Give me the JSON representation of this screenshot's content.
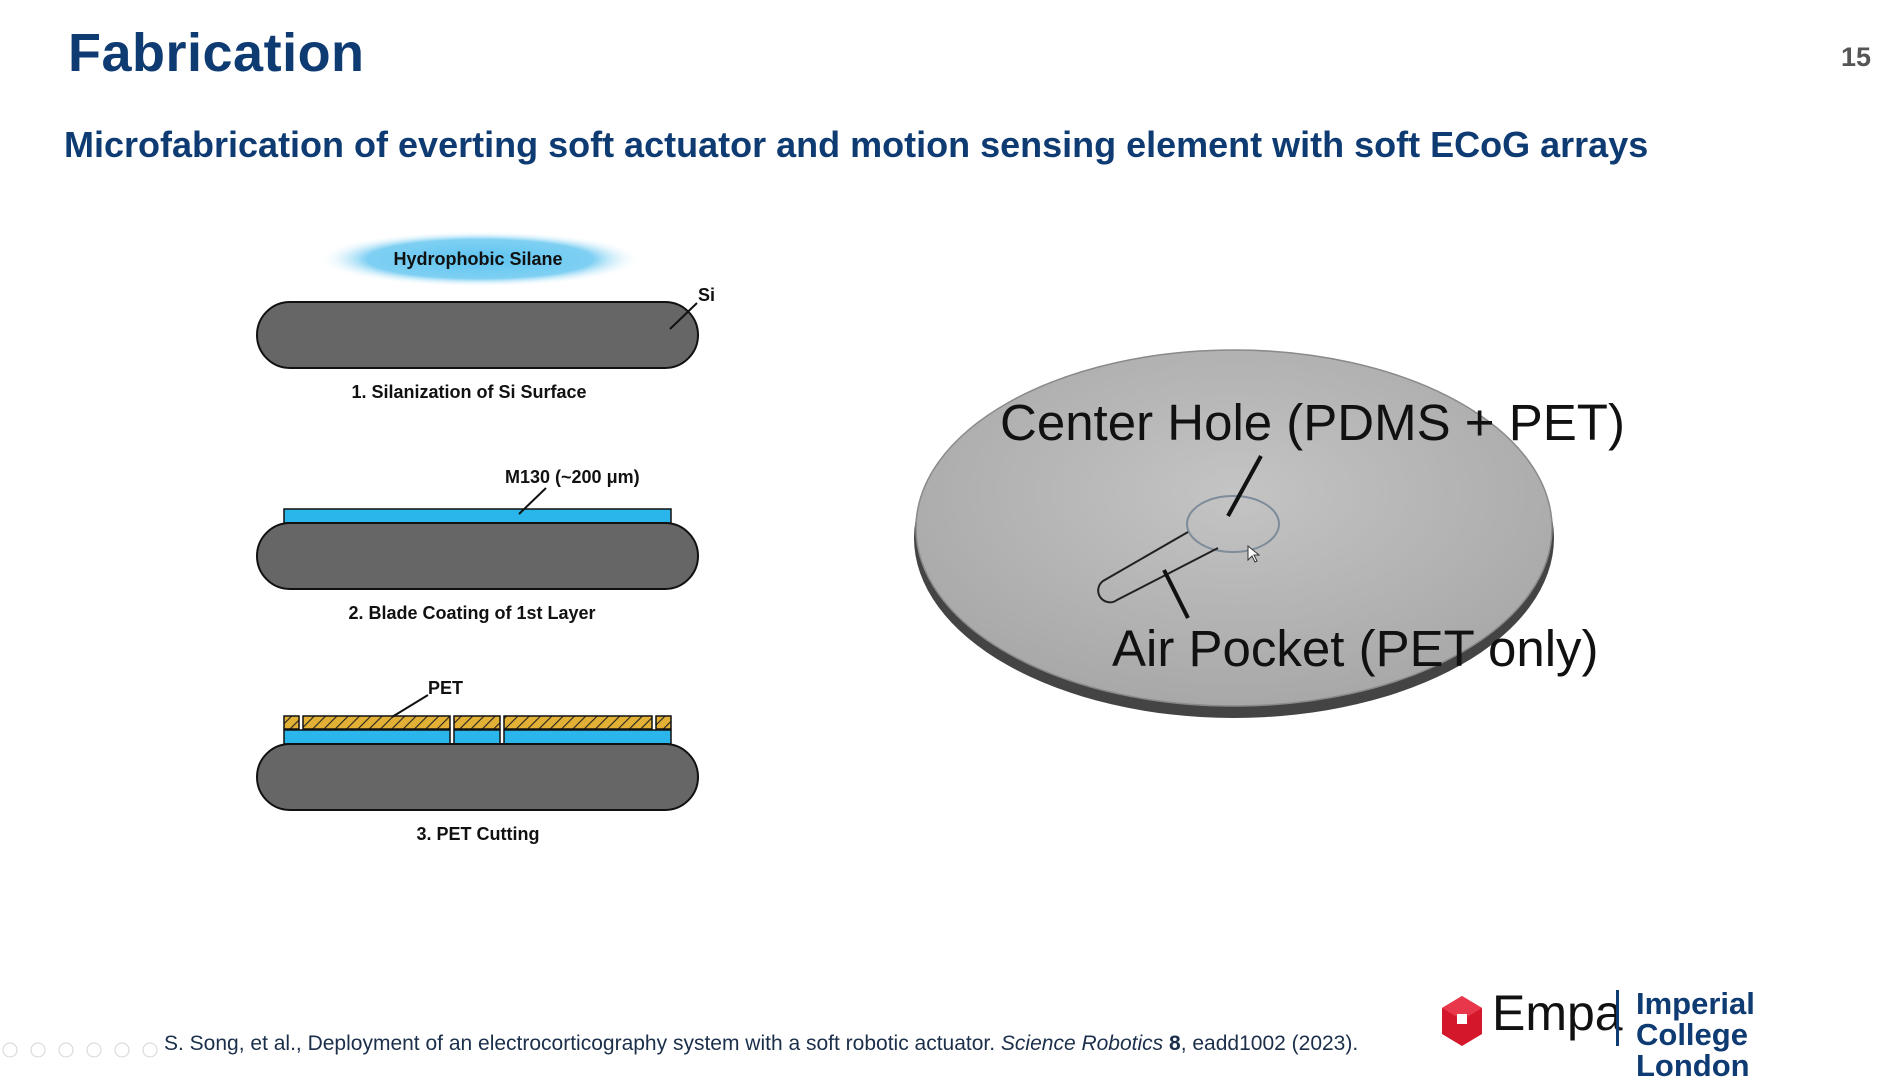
{
  "header": {
    "title": "Fabrication",
    "page_number": "15"
  },
  "subtitle": "Microfabrication of everting soft actuator and motion sensing element with soft ECoG arrays",
  "process_steps": {
    "silane_label": "Hydrophobic Silane",
    "si_label": "Si",
    "step1_caption": "1. Silanization of Si Surface",
    "m130_label": "M130 (~200 μm)",
    "step2_caption": "2. Blade Coating of 1st Layer",
    "pet_label": "PET",
    "step3_caption": "3. PET Cutting"
  },
  "disc_figure": {
    "center_hole_label": "Center Hole (PDMS + PET)",
    "air_pocket_label": "Air Pocket (PET only)"
  },
  "reference": {
    "authors_and_title": "S. Song, et al., Deployment of an electrocorticography system with a soft robotic actuator. ",
    "journal": "Science Robotics",
    "volume": "8",
    "article_and_year": ", eadd1002 (2023)."
  },
  "logos": {
    "empa": "Empa",
    "imperial_line1": "Imperial College",
    "imperial_line2": "London"
  },
  "colors": {
    "title_blue": "#0f3b73",
    "si_gray": "#666666",
    "m130_blue": "#2ab6ea",
    "pet_gold": "#e2b034",
    "disc_gray": "#b5b5b5"
  }
}
